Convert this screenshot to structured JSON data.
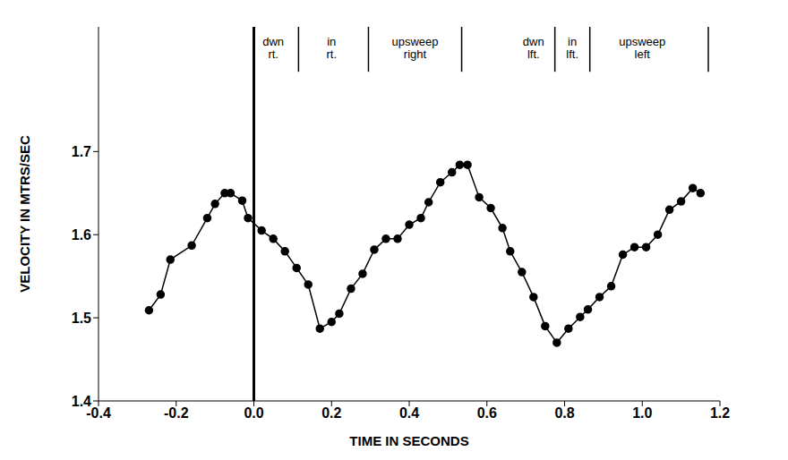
{
  "chart_data": {
    "type": "line",
    "x_label": "TIME IN SECONDS",
    "y_label": "VELOCITY IN MTRS/SEC",
    "x": [
      -0.27,
      -0.24,
      -0.215,
      -0.16,
      -0.12,
      -0.1,
      -0.075,
      -0.06,
      -0.03,
      -0.015,
      0.02,
      0.05,
      0.08,
      0.11,
      0.14,
      0.17,
      0.2,
      0.22,
      0.25,
      0.28,
      0.31,
      0.34,
      0.37,
      0.4,
      0.43,
      0.45,
      0.48,
      0.51,
      0.53,
      0.55,
      0.58,
      0.61,
      0.64,
      0.66,
      0.69,
      0.72,
      0.75,
      0.78,
      0.81,
      0.84,
      0.86,
      0.89,
      0.92,
      0.95,
      0.98,
      1.01,
      1.04,
      1.07,
      1.1,
      1.13,
      1.15
    ],
    "values": [
      1.509,
      1.528,
      1.57,
      1.587,
      1.62,
      1.637,
      1.65,
      1.65,
      1.641,
      1.62,
      1.605,
      1.595,
      1.58,
      1.56,
      1.54,
      1.487,
      1.495,
      1.505,
      1.535,
      1.553,
      1.582,
      1.595,
      1.595,
      1.612,
      1.62,
      1.639,
      1.663,
      1.675,
      1.684,
      1.684,
      1.645,
      1.632,
      1.608,
      1.58,
      1.555,
      1.525,
      1.49,
      1.47,
      1.487,
      1.501,
      1.51,
      1.525,
      1.538,
      1.576,
      1.585,
      1.585,
      1.6,
      1.63,
      1.64,
      1.656,
      1.65
    ],
    "color": "#000000",
    "marker": "circle",
    "xlim": [
      -0.4,
      1.2
    ],
    "xticks": [
      -0.4,
      -0.2,
      {
        "value": 0,
        "label": "0.0"
      },
      0.2,
      0.4,
      0.6,
      0.8,
      {
        "value": 1,
        "label": "1.0"
      },
      1.2
    ],
    "ylim": [
      1.4,
      1.85
    ],
    "yticks": [
      1.4,
      1.5,
      1.6,
      1.7
    ],
    "grid": false,
    "reference_x": 0,
    "phase_boundaries": [
      0.115,
      0.295,
      0.535,
      0.775,
      0.865,
      1.17
    ],
    "phases": [
      {
        "label": "dwn rt.",
        "x": 0.05
      },
      {
        "label": "in rt.",
        "x": 0.2
      },
      {
        "label": "upsweep right",
        "x": 0.415
      },
      {
        "label": "dwn lft.",
        "x": 0.72
      },
      {
        "label": "in lft.",
        "x": 0.82
      },
      {
        "label": "upsweep left",
        "x": 1.0
      }
    ]
  }
}
